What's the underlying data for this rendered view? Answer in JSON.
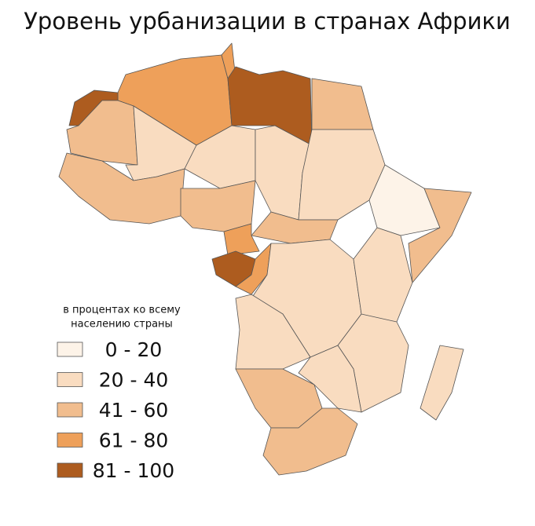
{
  "title": "Уровень урбанизации в странах Африки",
  "legend": {
    "subtitle_lines": [
      "в процентах ко всему",
      "населению страны"
    ],
    "items": [
      {
        "label": "0 - 20",
        "color": "#fdf3e8"
      },
      {
        "label": "20 - 40",
        "color": "#f9dcc0"
      },
      {
        "label": "41 - 60",
        "color": "#f1bd8e"
      },
      {
        "label": "61 - 80",
        "color": "#eea05a"
      },
      {
        "label": "81 - 100",
        "color": "#ad5c1f"
      }
    ]
  }
}
